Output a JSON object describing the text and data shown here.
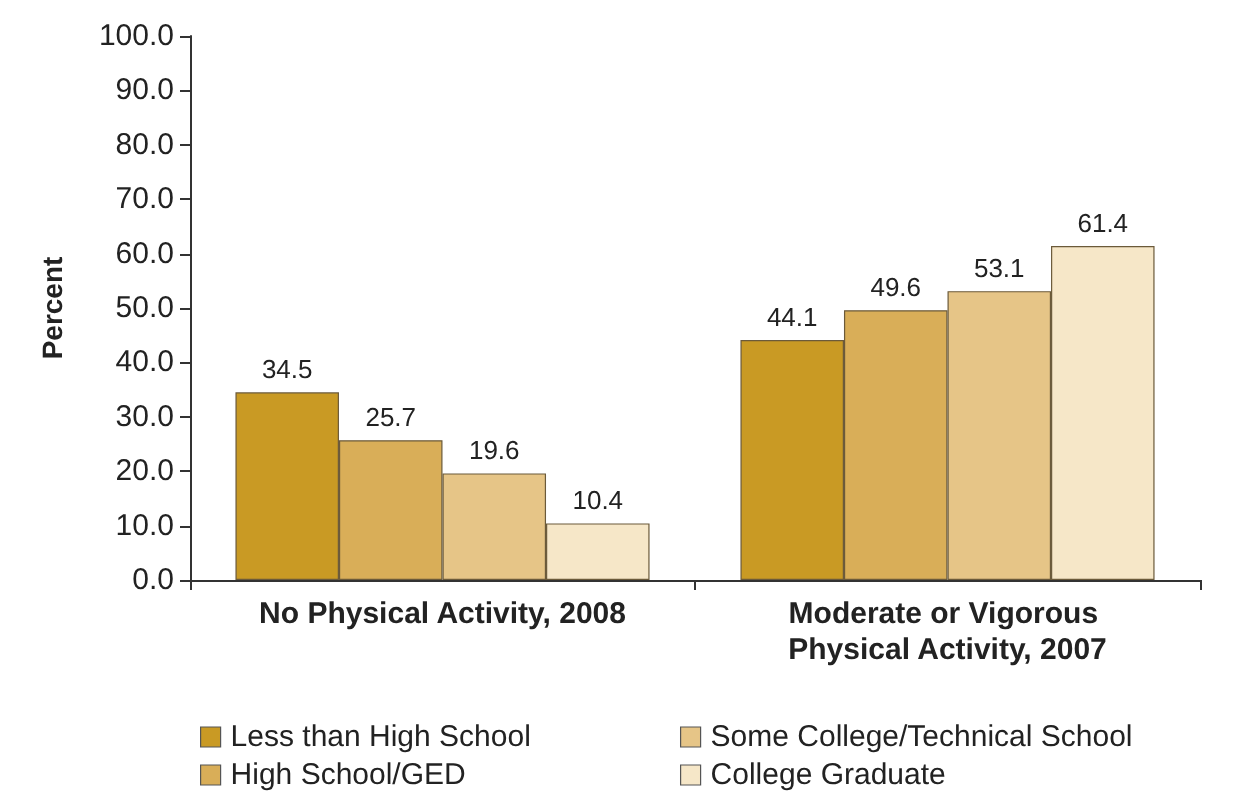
{
  "chart_data": {
    "type": "bar",
    "ylabel": "Percent",
    "categories": [
      "No Physical Activity, 2008",
      "Moderate or Vigorous Physical Activity, 2007"
    ],
    "series": [
      {
        "name": "Less than High School",
        "color": "#c99a24",
        "values": [
          34.5,
          44.1
        ]
      },
      {
        "name": "High School/GED",
        "color": "#d9ae58",
        "values": [
          25.7,
          49.6
        ]
      },
      {
        "name": "Some College/Technical School",
        "color": "#e6c587",
        "values": [
          19.6,
          53.1
        ]
      },
      {
        "name": "College Graduate",
        "color": "#f6e7c8",
        "values": [
          10.4,
          61.4
        ]
      }
    ],
    "ylim": [
      0,
      100
    ],
    "yticks": [
      {
        "value": 0,
        "label": "0.0"
      },
      {
        "value": 10,
        "label": "10.0"
      },
      {
        "value": 20,
        "label": "20.0"
      },
      {
        "value": 30,
        "label": "30.0"
      },
      {
        "value": 40,
        "label": "40.0"
      },
      {
        "value": 50,
        "label": "50.0"
      },
      {
        "value": 60,
        "label": "60.0"
      },
      {
        "value": 70,
        "label": "70.0"
      },
      {
        "value": 80,
        "label": "80.0"
      },
      {
        "value": 90,
        "label": "90.0"
      },
      {
        "value": 100,
        "label": "100.0"
      }
    ],
    "grid": false,
    "legend": "bottom",
    "data_labels": true
  }
}
